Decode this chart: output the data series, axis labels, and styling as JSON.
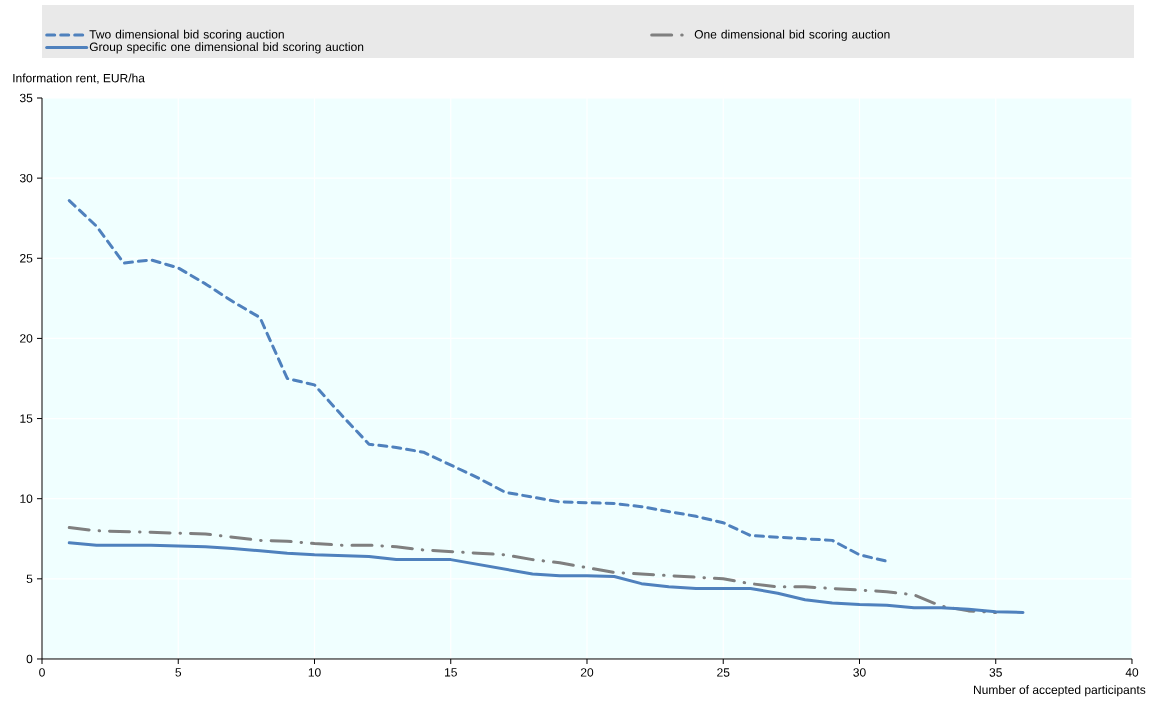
{
  "chart_data": {
    "type": "line",
    "xlabel": "Number of accepted participants",
    "ylabel": "Information rent, EUR/ha",
    "xlim": [
      0,
      40
    ],
    "xticks": [
      0,
      5,
      10,
      15,
      20,
      25,
      30,
      35,
      40
    ],
    "ylim": [
      0,
      35
    ],
    "yticks": [
      0,
      5,
      10,
      15,
      20,
      25,
      30,
      35
    ],
    "grid": true,
    "legend": "top",
    "series": [
      {
        "name": "Two dimensional bid scoring auction",
        "color": "#4f81bd",
        "line_style": "dashed",
        "x": [
          1,
          2,
          3,
          4,
          5,
          6,
          7,
          8,
          9,
          10,
          11,
          12,
          13,
          14,
          15,
          16,
          17,
          18,
          19,
          20,
          21,
          22,
          23,
          24,
          25,
          26,
          27,
          28,
          29,
          30,
          31
        ],
        "values": [
          28.6,
          27.0,
          24.7,
          24.9,
          24.4,
          23.4,
          22.3,
          21.3,
          17.5,
          17.1,
          15.2,
          13.4,
          13.2,
          12.9,
          12.1,
          11.3,
          10.4,
          10.1,
          9.8,
          9.75,
          9.7,
          9.5,
          9.2,
          8.9,
          8.5,
          7.7,
          7.6,
          7.5,
          7.4,
          6.5,
          6.1
        ]
      },
      {
        "name": "One dimensional bid scoring auction",
        "color": "#7f7f7f",
        "line_style": "dashdot",
        "x": [
          1,
          2,
          3,
          4,
          5,
          6,
          7,
          8,
          9,
          10,
          11,
          12,
          13,
          14,
          15,
          16,
          17,
          18,
          19,
          20,
          21,
          22,
          23,
          24,
          25,
          26,
          27,
          28,
          29,
          30,
          31,
          32,
          33,
          34,
          35
        ],
        "values": [
          8.2,
          8.0,
          7.95,
          7.9,
          7.85,
          7.8,
          7.6,
          7.4,
          7.35,
          7.2,
          7.1,
          7.1,
          7.0,
          6.8,
          6.7,
          6.6,
          6.5,
          6.2,
          6.0,
          5.7,
          5.4,
          5.3,
          5.2,
          5.1,
          5.0,
          4.7,
          4.5,
          4.5,
          4.4,
          4.3,
          4.2,
          4.0,
          3.3,
          3.0,
          2.9
        ]
      },
      {
        "name": "Group specific one dimensional bid scoring auction",
        "color": "#4f81bd",
        "line_style": "solid",
        "x": [
          1,
          2,
          3,
          4,
          5,
          6,
          7,
          8,
          9,
          10,
          11,
          12,
          13,
          14,
          15,
          16,
          17,
          18,
          19,
          20,
          21,
          22,
          23,
          24,
          25,
          26,
          27,
          28,
          29,
          30,
          31,
          32,
          33,
          34,
          35,
          36
        ],
        "values": [
          7.25,
          7.1,
          7.1,
          7.1,
          7.05,
          7.0,
          6.9,
          6.75,
          6.6,
          6.5,
          6.45,
          6.4,
          6.2,
          6.2,
          6.2,
          5.9,
          5.6,
          5.3,
          5.2,
          5.2,
          5.15,
          4.7,
          4.5,
          4.4,
          4.4,
          4.4,
          4.1,
          3.7,
          3.5,
          3.4,
          3.35,
          3.2,
          3.2,
          3.1,
          2.95,
          2.9
        ]
      }
    ]
  }
}
